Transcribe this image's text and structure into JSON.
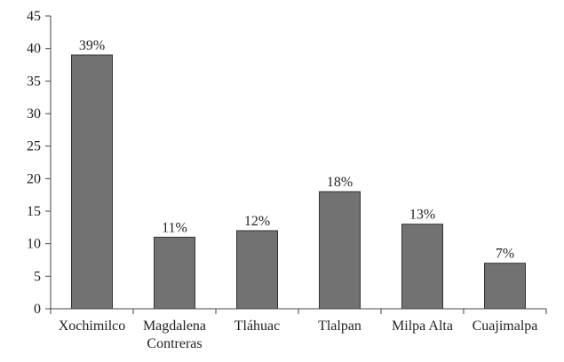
{
  "chart_data": {
    "type": "bar",
    "categories": [
      [
        "Xochimilco"
      ],
      [
        "Magdalena",
        "Contreras"
      ],
      [
        "Tláhuac"
      ],
      [
        "Tlalpan"
      ],
      [
        "Milpa Alta"
      ],
      [
        "Cuajimalpa"
      ]
    ],
    "values": [
      39,
      11,
      12,
      18,
      13,
      7
    ],
    "data_labels": [
      "39%",
      "11%",
      "12%",
      "18%",
      "13%",
      "7%"
    ],
    "y_ticks": [
      "0",
      "5",
      "10",
      "15",
      "20",
      "25",
      "30",
      "35",
      "40",
      "45"
    ],
    "ylim": [
      0,
      45
    ],
    "title": "",
    "xlabel": "",
    "ylabel": "",
    "grid": false,
    "bar_color": "#727272",
    "bar_edge_color": "#333333",
    "axis_color": "#444444"
  }
}
